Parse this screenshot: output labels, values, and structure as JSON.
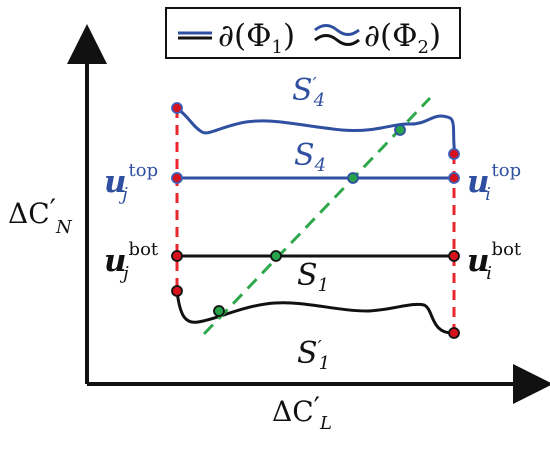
{
  "legend": {
    "left": "∂(Φ",
    "left_sub": "1",
    "right": "∂(Φ",
    "right_sub": "2",
    "close": ")"
  },
  "axes": {
    "y_label_main": "ΔC",
    "y_label_prime": "′",
    "y_label_sub": "N",
    "x_label_main": "ΔC",
    "x_label_prime": "′",
    "x_label_sub": "L"
  },
  "curves": {
    "s4p": {
      "main": "S",
      "prime": "′",
      "sub": "4"
    },
    "s4": {
      "main": "S",
      "sub": "4"
    },
    "s1": {
      "main": "S",
      "sub": "1"
    },
    "s1p": {
      "main": "S",
      "prime": "′",
      "sub": "1"
    }
  },
  "points": {
    "uj_top": {
      "main": "u",
      "sub": "j",
      "sup": "top"
    },
    "ui_top": {
      "main": "u",
      "sub": "i",
      "sup": "top"
    },
    "uj_bot": {
      "main": "u",
      "sub": "j",
      "sup": "bot"
    },
    "ui_bot": {
      "main": "u",
      "sub": "i",
      "sup": "bot"
    }
  },
  "colors": {
    "blue": "#2f4fa0",
    "black": "#111111",
    "red": "#e8262b",
    "green": "#2ea84a",
    "red_dot": "#d6121c",
    "blue_dot": "#3e5cb8",
    "green_dot": "#26a34a"
  }
}
